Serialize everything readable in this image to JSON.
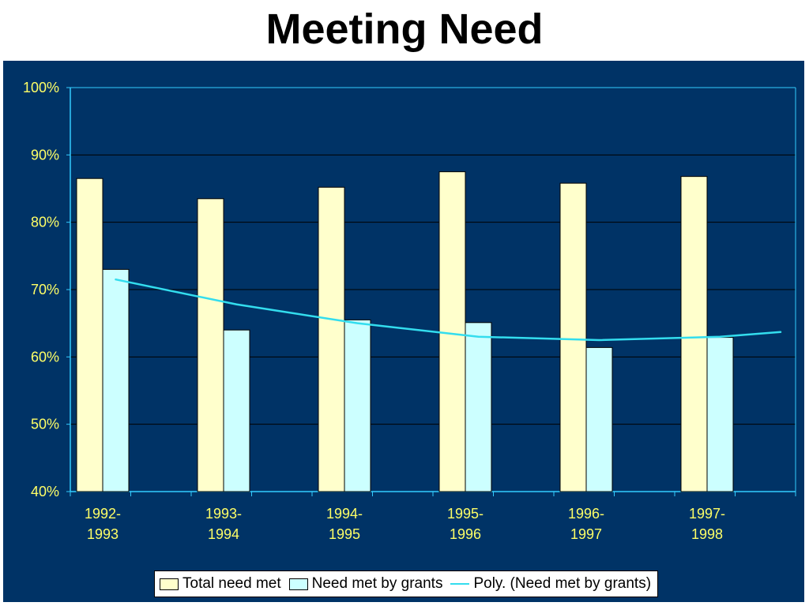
{
  "title": "Meeting Need",
  "colors": {
    "background": "#003366",
    "series_total": "#ffffcc",
    "series_grants": "#ccffff",
    "trend": "#33ddee",
    "tick_text": "#ffff66",
    "gridline": "#000000",
    "axis": "#33ccff"
  },
  "legend": {
    "total": "Total need met",
    "grants": "Need met by grants",
    "trend": "Poly. (Need met by grants)"
  },
  "chart_data": {
    "type": "bar",
    "categories": [
      "1992-\n1993",
      "1993-\n1994",
      "1994-\n1995",
      "1995-\n1996",
      "1996-\n1997",
      "1997-\n1998"
    ],
    "series": [
      {
        "name": "Total need met",
        "values": [
          86.5,
          83.5,
          85.2,
          87.5,
          85.8,
          86.8
        ]
      },
      {
        "name": "Need met by grants",
        "values": [
          73.0,
          64.0,
          65.5,
          65.1,
          61.4,
          62.9
        ]
      }
    ],
    "trendline": {
      "name": "Poly. (Need met by grants)",
      "type": "polynomial",
      "points": [
        {
          "x": 0.0,
          "y": 71.5
        },
        {
          "x": 1.0,
          "y": 67.8
        },
        {
          "x": 2.0,
          "y": 65.0
        },
        {
          "x": 3.0,
          "y": 63.0
        },
        {
          "x": 4.0,
          "y": 62.5
        },
        {
          "x": 5.0,
          "y": 63.0
        },
        {
          "x": 5.5,
          "y": 63.7
        }
      ]
    },
    "y_ticks": [
      "40%",
      "50%",
      "60%",
      "70%",
      "80%",
      "90%",
      "100%"
    ],
    "ylim": [
      40,
      100
    ],
    "grid": true,
    "legend_position": "bottom"
  }
}
